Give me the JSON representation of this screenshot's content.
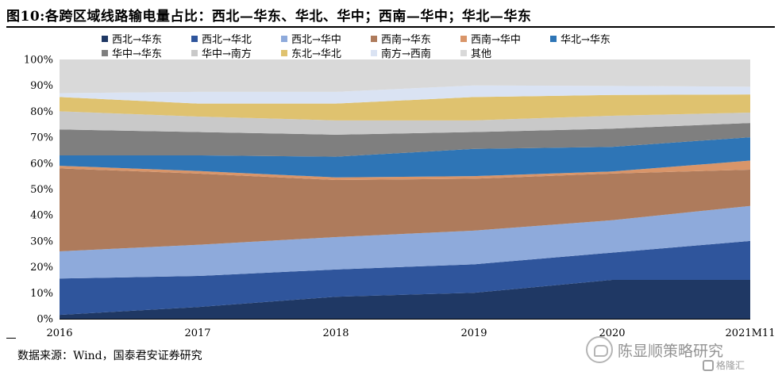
{
  "title": "图10:各跨区域线路输电量占比：西北—华东、华北、华中；西南—华中；华北—华东",
  "source": "数据来源：Wind，国泰君安证券研究",
  "watermark": {
    "text": "陈显顺策略研究",
    "logo_text": "格隆汇"
  },
  "chart_data": {
    "type": "area",
    "stacked": true,
    "x": [
      "2016",
      "2017",
      "2018",
      "2019",
      "2020",
      "2021M11"
    ],
    "ylim": [
      0,
      100
    ],
    "yticks": [
      "0%",
      "10%",
      "20%",
      "30%",
      "40%",
      "50%",
      "60%",
      "70%",
      "80%",
      "90%",
      "100%"
    ],
    "legend_position": "top",
    "series": [
      {
        "name": "西北→华东",
        "color": "#1f3864",
        "values": [
          1.5,
          4.5,
          8.5,
          10,
          15,
          15
        ]
      },
      {
        "name": "西北→华北",
        "color": "#2f559c",
        "values": [
          14,
          12,
          10.5,
          11,
          10.5,
          15
        ]
      },
      {
        "name": "西北→华中",
        "color": "#8eaadb",
        "values": [
          10.5,
          12,
          12.5,
          13,
          12.5,
          13.5
        ]
      },
      {
        "name": "西南→华东",
        "color": "#ae7b5c",
        "values": [
          32,
          27.5,
          22,
          20,
          18,
          14
        ]
      },
      {
        "name": "西南→华中",
        "color": "#d99569",
        "values": [
          1,
          1,
          1,
          1,
          0.8,
          3.5
        ]
      },
      {
        "name": "华北→华东",
        "color": "#2e75b6",
        "values": [
          4,
          6,
          8,
          10.5,
          9.5,
          9
        ]
      },
      {
        "name": "华中→华东",
        "color": "#7f7f7f",
        "values": [
          10,
          9,
          8.5,
          6.5,
          7,
          5.5
        ]
      },
      {
        "name": "华中→南方",
        "color": "#c9c9c9",
        "values": [
          7,
          6,
          5.5,
          4.5,
          5,
          4
        ]
      },
      {
        "name": "东北→华北",
        "color": "#dfc26f",
        "values": [
          5.5,
          5,
          6.5,
          9,
          8,
          7
        ]
      },
      {
        "name": "南方→西南",
        "color": "#dae3f3",
        "values": [
          1.5,
          4.5,
          4.5,
          4.5,
          3.5,
          3
        ]
      },
      {
        "name": "其他",
        "color": "#d9d9d9",
        "values": [
          13,
          12.5,
          12.5,
          10,
          10.2,
          10.5
        ]
      }
    ]
  }
}
